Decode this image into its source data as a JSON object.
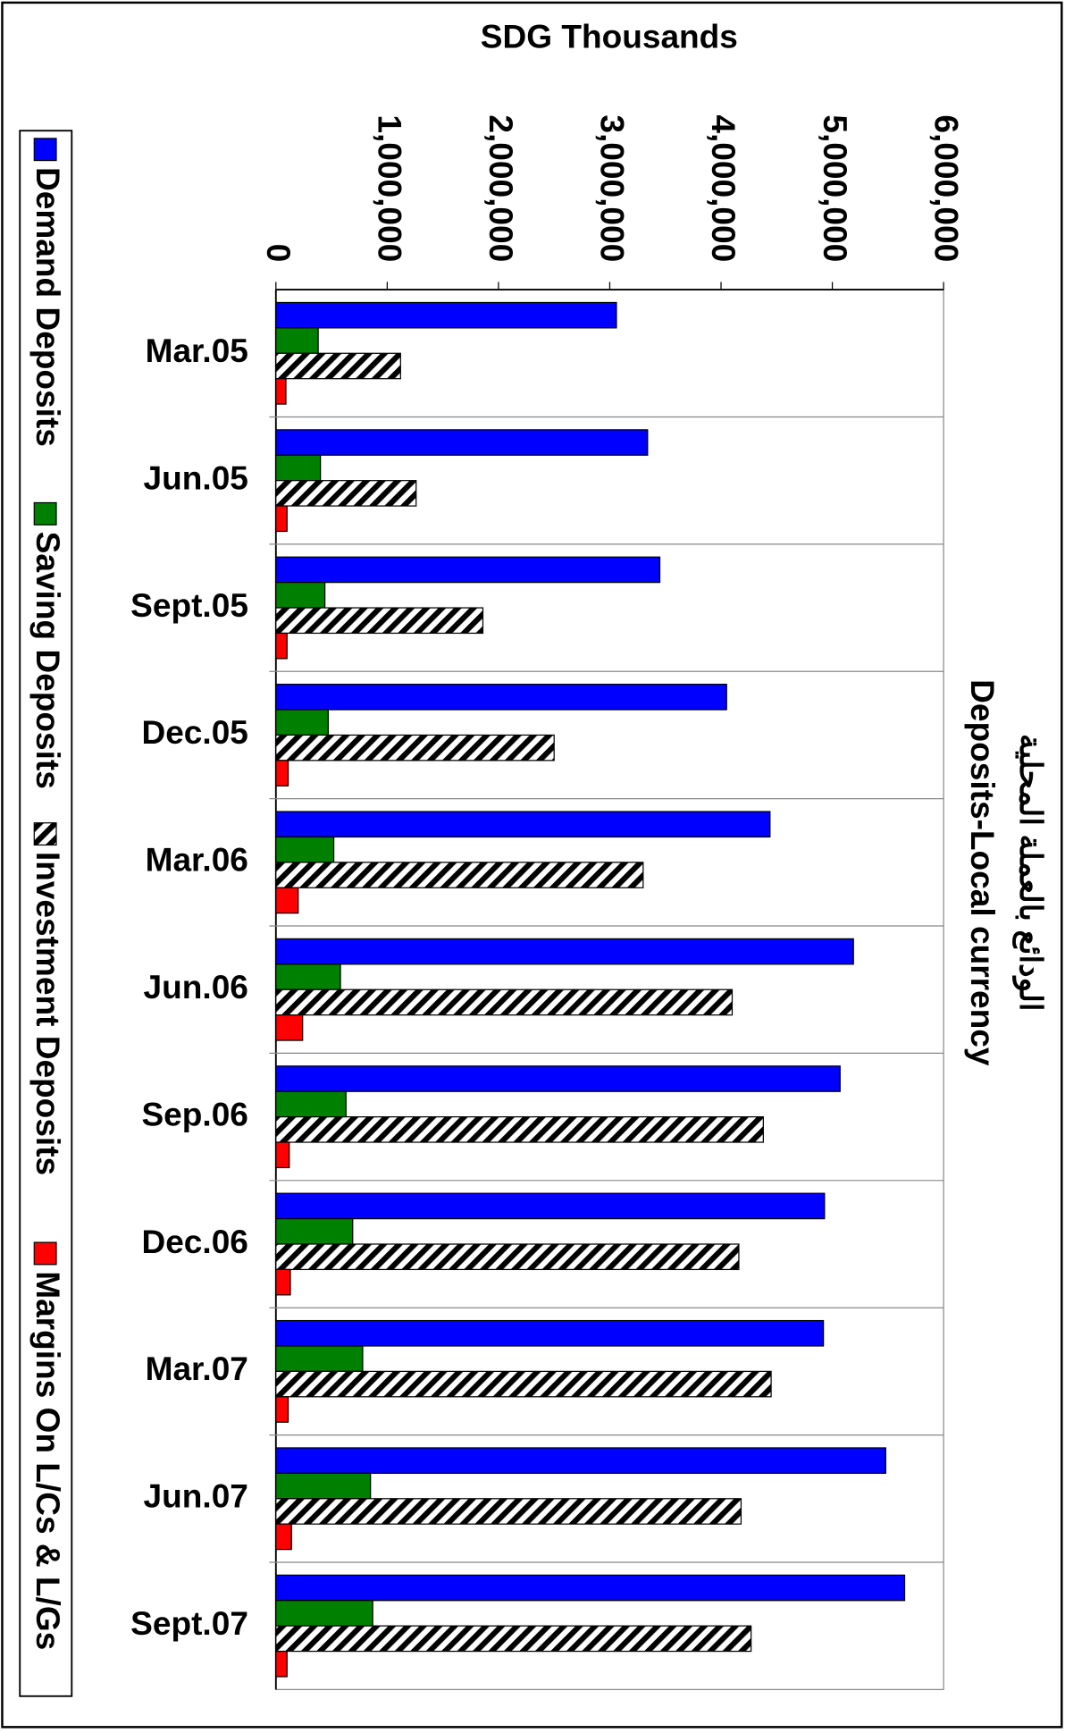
{
  "chart_data": {
    "type": "bar",
    "orientation": "horizontal",
    "title": "Deposits-Local currency",
    "subtitle": "الودائع بالعملة المحلية",
    "value_axis_label": "SDG Thousands",
    "categories": [
      "Mar.05",
      "Jun.05",
      "Sept.05",
      "Dec.05",
      "Mar.06",
      "Jun.06",
      "Sep.06",
      "Dec.06",
      "Mar.07",
      "Jun.07",
      "Sept.07"
    ],
    "series": [
      {
        "name": "Demand Deposits",
        "color": "#0000ff",
        "values": [
          3060000,
          3340000,
          3450000,
          4050000,
          4440000,
          5190000,
          5070000,
          4930000,
          4920000,
          5480000,
          5650000
        ]
      },
      {
        "name": "Saving Deposits",
        "color": "#008000",
        "values": [
          380000,
          400000,
          440000,
          470000,
          520000,
          580000,
          630000,
          690000,
          780000,
          850000,
          870000
        ]
      },
      {
        "name": "Investment Deposits",
        "color": "hatch",
        "values": [
          1120000,
          1260000,
          1860000,
          2500000,
          3300000,
          4100000,
          4380000,
          4160000,
          4450000,
          4180000,
          4270000
        ]
      },
      {
        "name": "Margins On L/Cs & L/Gs",
        "color": "#ff0000",
        "values": [
          90000,
          100000,
          100000,
          110000,
          200000,
          240000,
          120000,
          130000,
          110000,
          140000,
          100000
        ]
      }
    ],
    "ylim": [
      0,
      6000000
    ],
    "yticks": [
      0,
      {
        "value": 1000000,
        "label": "1,000,000"
      },
      {
        "value": 2000000,
        "label": "2,000,000"
      },
      {
        "value": 3000000,
        "label": "3,000,000"
      },
      {
        "value": 4000000,
        "label": "4,000,000"
      },
      {
        "value": 5000000,
        "label": "5,000,000"
      },
      {
        "value": 6000000,
        "label": "6,000,000"
      }
    ],
    "legend": "left",
    "grid": false
  }
}
